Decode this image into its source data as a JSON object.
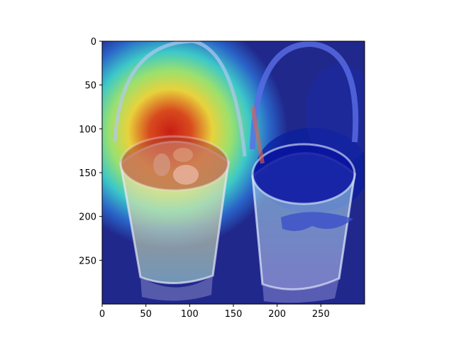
{
  "figure": {
    "x_ticks": [
      "0",
      "50",
      "100",
      "150",
      "200",
      "250"
    ],
    "y_ticks": [
      "0",
      "50",
      "100",
      "150",
      "200",
      "250"
    ],
    "image_content": "two-pails-with-handles-and-striped-ribbons-heatmap-overlay"
  },
  "colors": {
    "colormap": "jet",
    "hot_center": "#c81e14",
    "cool_background": "#1e238c"
  }
}
